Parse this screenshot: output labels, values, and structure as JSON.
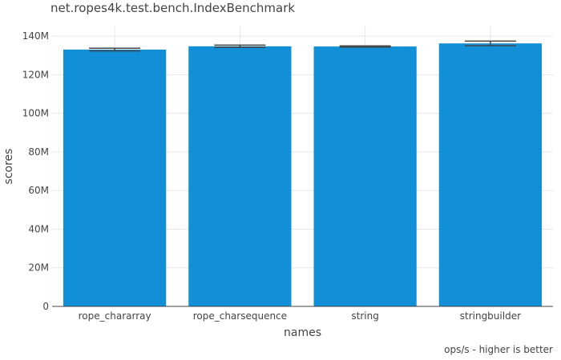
{
  "chart_data": {
    "type": "bar",
    "title": "net.ropes4k.test.bench.IndexBenchmark",
    "xlabel": "names",
    "ylabel": "scores",
    "footer": "ops/s - higher is better",
    "categories": [
      "rope_chararray",
      "rope_charsequence",
      "string",
      "stringbuilder"
    ],
    "values": [
      133000000,
      134700000,
      134600000,
      136200000
    ],
    "error_low": [
      132300000,
      134100000,
      134300000,
      135000000
    ],
    "error_high": [
      133700000,
      135300000,
      134900000,
      137400000
    ],
    "ylim": [
      0,
      145000000
    ],
    "yticks": [
      0,
      20000000,
      40000000,
      60000000,
      80000000,
      100000000,
      120000000,
      140000000
    ],
    "ytick_labels": [
      "0",
      "20M",
      "40M",
      "60M",
      "80M",
      "100M",
      "120M",
      "140M"
    ],
    "grid": true,
    "bar_color": "#1190d8",
    "error_bar_color": "#444444"
  }
}
